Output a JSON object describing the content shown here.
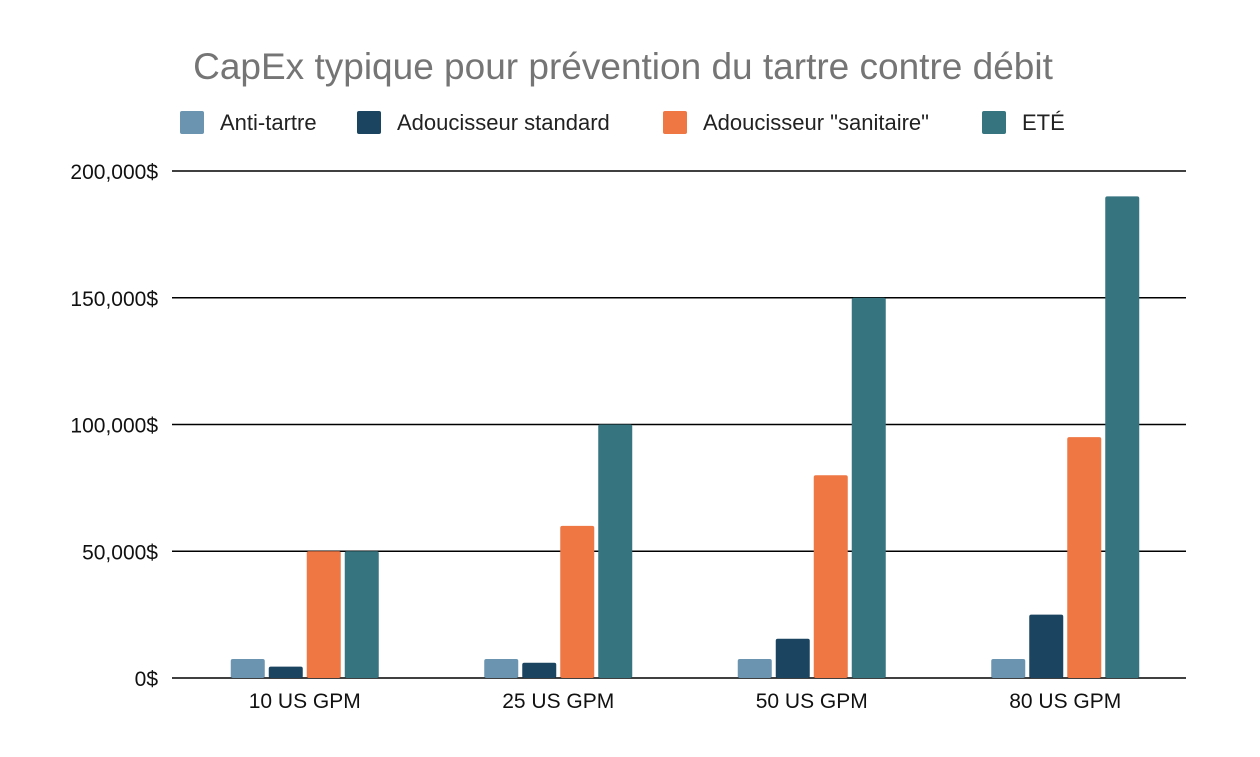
{
  "chart_data": {
    "type": "bar",
    "title": "CapEx typique pour prévention du tartre contre débit",
    "xlabel": "",
    "ylabel": "",
    "categories": [
      "10 US GPM",
      "25 US GPM",
      "50 US GPM",
      "80 US GPM"
    ],
    "series": [
      {
        "name": "Anti-tartre",
        "color": "#6a94b0",
        "values": [
          7500,
          7500,
          7500,
          7500
        ]
      },
      {
        "name": "Adoucisseur standard",
        "color": "#1b4460",
        "values": [
          4500,
          6000,
          15500,
          25000
        ]
      },
      {
        "name": "Adoucisseur \"sanitaire\"",
        "color": "#ee7744",
        "values": [
          50000,
          60000,
          80000,
          95000
        ]
      },
      {
        "name": "ETÉ",
        "color": "#367580",
        "values": [
          50000,
          100000,
          150000,
          190000
        ]
      }
    ],
    "ylim": [
      0,
      200000
    ],
    "yticks": [
      {
        "value": 0,
        "label": "0$"
      },
      {
        "value": 50000,
        "label": "50,000$"
      },
      {
        "value": 100000,
        "label": "100,000$"
      },
      {
        "value": 150000,
        "label": "150,000$"
      },
      {
        "value": 200000,
        "label": "200,000$"
      }
    ],
    "grid": true,
    "legend_position": "top"
  }
}
